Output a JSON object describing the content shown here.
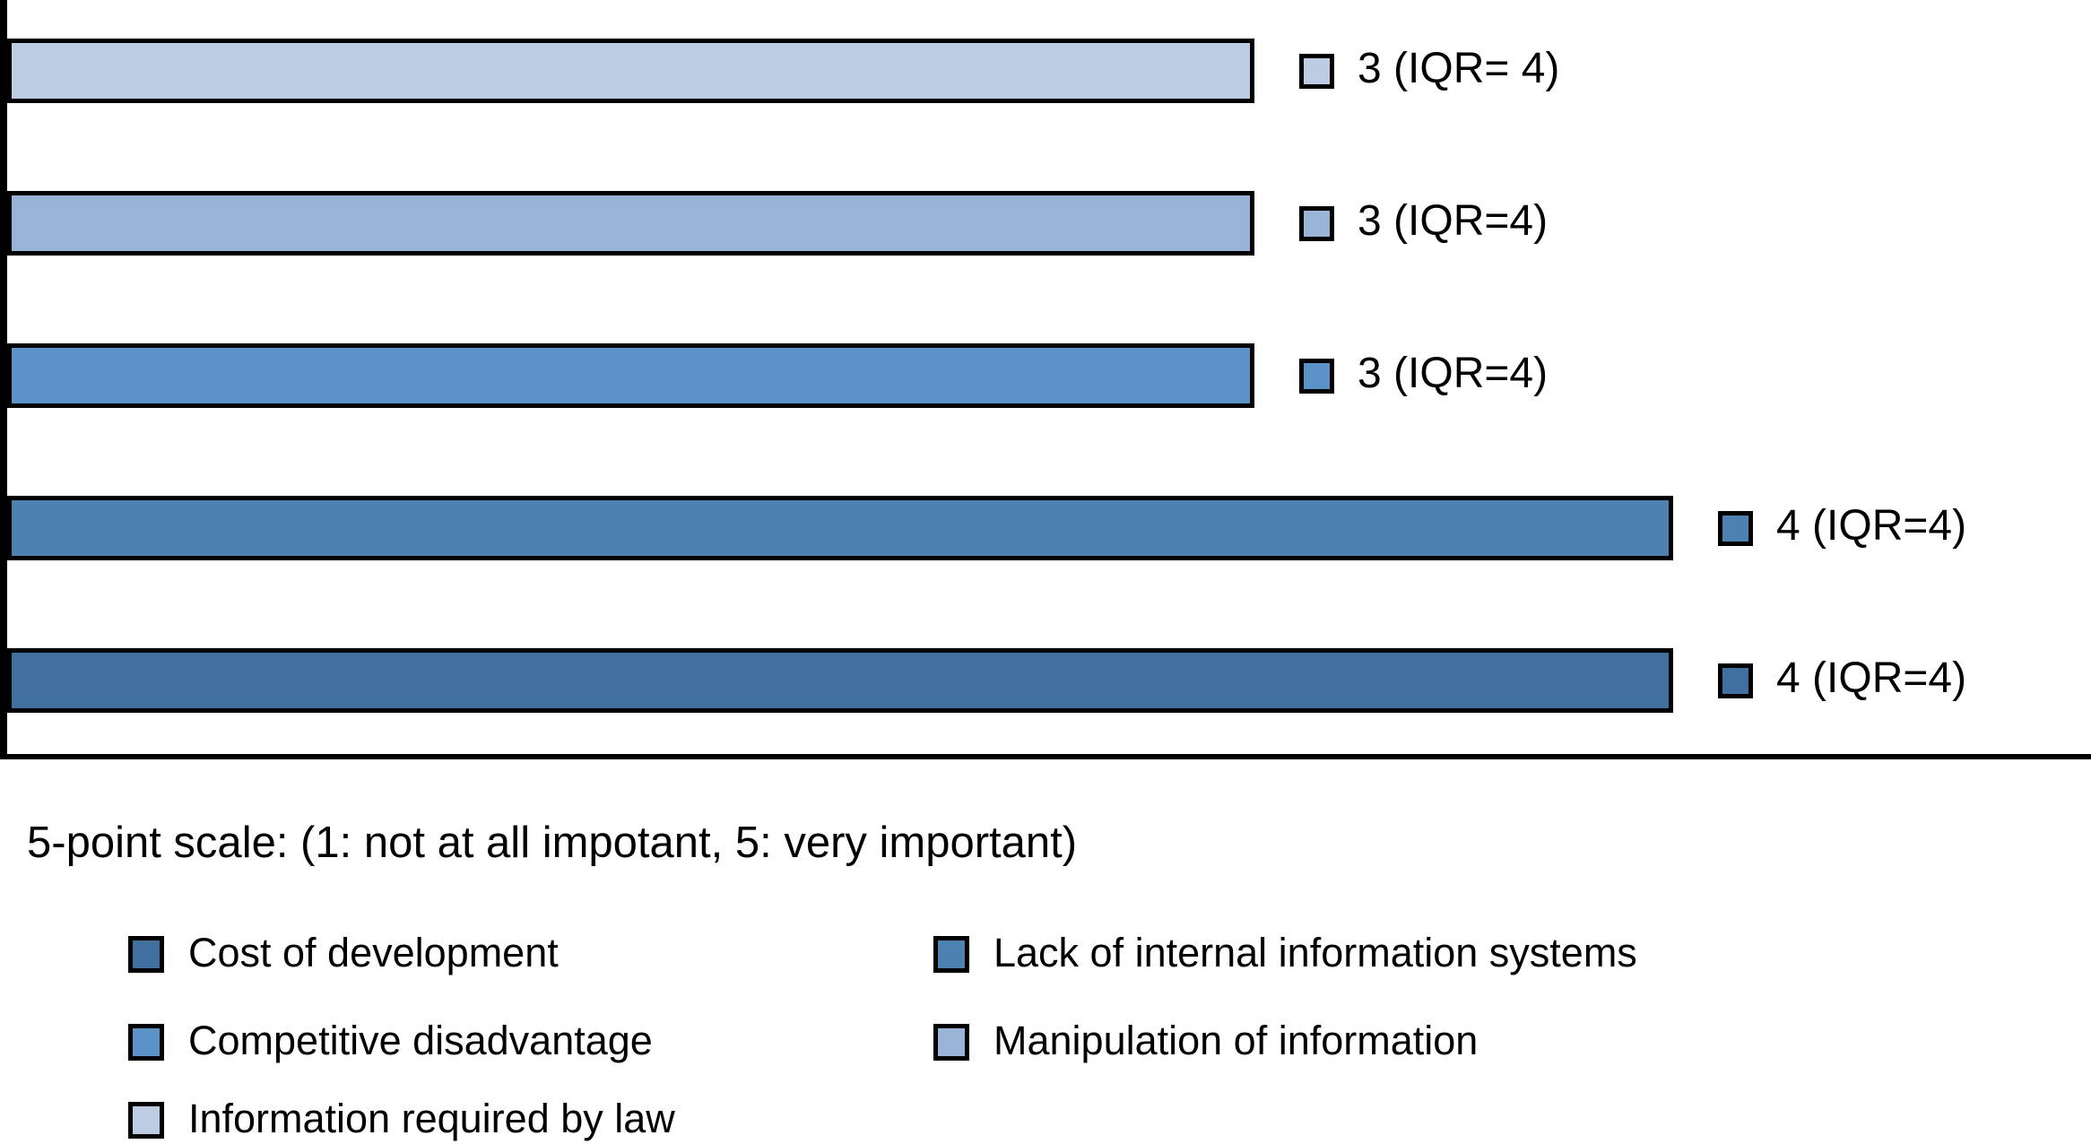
{
  "chart_data": {
    "type": "bar",
    "orientation": "horizontal",
    "x_range": [
      0,
      5
    ],
    "grid": false,
    "categories": [
      "Information required by law",
      "Manipulation of information",
      "Competitive disadvantage",
      "Lack of internal information systems",
      "Cost of development"
    ],
    "values": [
      3,
      3,
      3,
      4,
      4
    ],
    "iqr_values": [
      4,
      4,
      4,
      4,
      4
    ],
    "bars": [
      {
        "category": "Information required by law",
        "value": 3,
        "iqr": 4,
        "label": "3 (IQR= 4)",
        "color": "#bdcbe3"
      },
      {
        "category": "Manipulation of information",
        "value": 3,
        "iqr": 4,
        "label": "3 (IQR=4)",
        "color": "#9ab4d8"
      },
      {
        "category": "Competitive disadvantage",
        "value": 3,
        "iqr": 4,
        "label": "3 (IQR=4)",
        "color": "#5b92c7"
      },
      {
        "category": "Lack of internal information systems",
        "value": 4,
        "iqr": 4,
        "label": "4 (IQR=4)",
        "color": "#4d81b2"
      },
      {
        "category": "Cost of development",
        "value": 4,
        "iqr": 4,
        "label": "4 (IQR=4)",
        "color": "#40709f"
      }
    ],
    "title": "",
    "xlabel": "",
    "ylabel": ""
  },
  "footnote": "5-point scale: (1: not at all impotant, 5: very important)",
  "legend": {
    "position": "bottom",
    "columns": [
      [
        {
          "label": "Cost of development",
          "color": "#40709f"
        },
        {
          "label": "Competitive disadvantage",
          "color": "#5b92c7"
        },
        {
          "label": "Information required by law",
          "color": "#bdcbe3"
        }
      ],
      [
        {
          "label": "Lack of internal information systems",
          "color": "#4d81b2"
        },
        {
          "label": "Manipulation of information",
          "color": "#9ab4d8"
        }
      ]
    ]
  }
}
